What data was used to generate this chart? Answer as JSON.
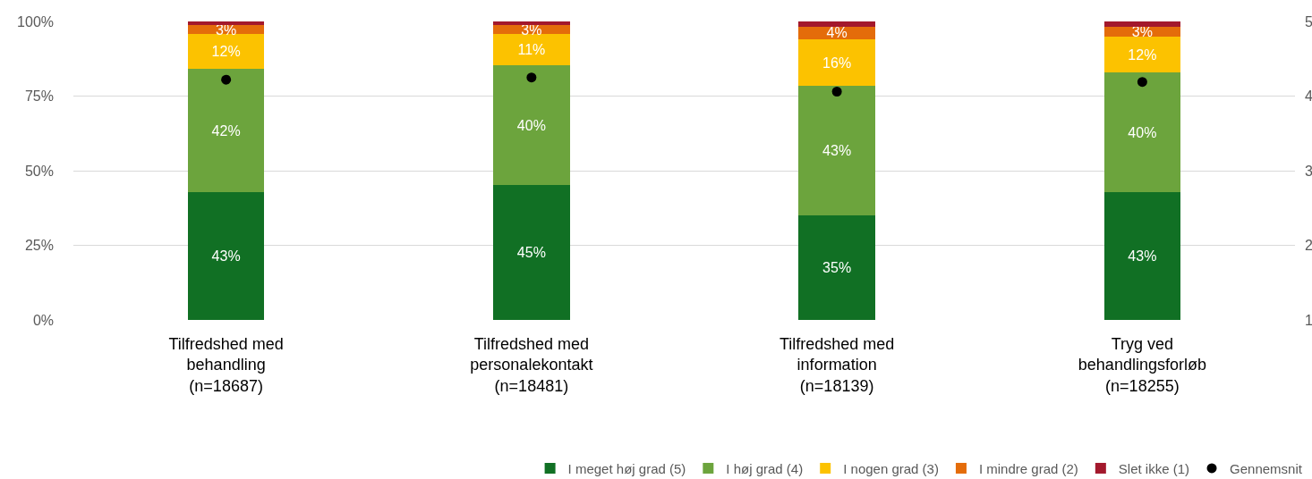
{
  "chart_data": {
    "type": "bar",
    "stacked": true,
    "categories": [
      "Tilfredshed med behandling (n=18687)",
      "Tilfredshed med personalekontakt (n=18481)",
      "Tilfredshed med information (n=18139)",
      "Tryg ved behandlingsforløb (n=18255)"
    ],
    "series": [
      {
        "name": "I meget høj grad (5)",
        "color": "#117024",
        "values": [
          42.7,
          45.3,
          35.1,
          42.8
        ],
        "value_labels": [
          "43%",
          "45%",
          "35%",
          "43%"
        ]
      },
      {
        "name": "I høj grad (4)",
        "color": "#6ca43d",
        "values": [
          41.5,
          39.9,
          43.2,
          40.1
        ],
        "value_labels": [
          "42%",
          "40%",
          "43%",
          "40%"
        ]
      },
      {
        "name": "I nogen grad (3)",
        "color": "#fcc200",
        "values": [
          11.7,
          10.7,
          15.8,
          12.0
        ],
        "value_labels": [
          "12%",
          "11%",
          "16%",
          "12%"
        ]
      },
      {
        "name": "I mindre grad (2)",
        "color": "#e46c0a",
        "values": [
          2.8,
          2.8,
          4.2,
          3.4
        ],
        "value_labels": [
          "3%",
          "3%",
          "4%",
          "3%"
        ]
      },
      {
        "name": "Slet ikke (1)",
        "color": "#a3182c",
        "values": [
          1.3,
          1.3,
          1.7,
          1.7
        ]
      },
      {
        "name": "Gennemsnit",
        "type": "scatter",
        "axis": "y2",
        "color": "#000000",
        "values": [
          4.22,
          4.25,
          4.06,
          4.19
        ]
      }
    ],
    "marker": "circle",
    "ylim": [
      0,
      100
    ],
    "yticks": [
      {
        "value": 0,
        "label": "0%"
      },
      {
        "value": 25,
        "label": "25%"
      },
      {
        "value": 50,
        "label": "50%"
      },
      {
        "value": 75,
        "label": "75%"
      },
      {
        "value": 100,
        "label": "100%"
      }
    ],
    "y2lim": [
      1,
      5
    ],
    "y2ticks": [
      1,
      2,
      3,
      4,
      5
    ],
    "grid": "y",
    "legend": "bottom right"
  }
}
